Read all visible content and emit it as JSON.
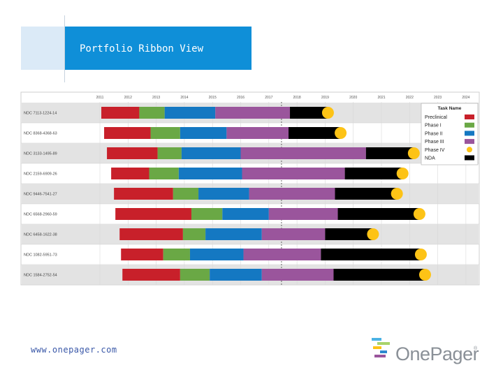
{
  "slide": {
    "title": "Portfolio Ribbon View",
    "footer_url": "www.onepager.com",
    "logo_text": "OnePager",
    "logo_reg": "®"
  },
  "colors": {
    "title_blue": "#0f8fd8",
    "Preclinical": "#c8202a",
    "Phase I": "#6aa845",
    "Phase II": "#1478c2",
    "Phase III": "#9a559c",
    "Phase IV": "#fdc316",
    "NDA": "#000000",
    "band": "#e3e3e3"
  },
  "chart_data": {
    "type": "gantt",
    "x_unit": "year",
    "xlim": [
      2011,
      2024
    ],
    "x_ticks": [
      2011,
      2012,
      2013,
      2014,
      2015,
      2016,
      2017,
      2018,
      2019,
      2020,
      2021,
      2022,
      2023,
      2024
    ],
    "x_tick_labels": [
      "2011",
      "2012",
      "2013",
      "2014",
      "2015",
      "2016",
      "2017",
      "2018",
      "2019",
      "2020",
      "2021",
      "2022",
      "2023",
      "2024"
    ],
    "today_line": 2017.45,
    "legend": {
      "title": "Task Name",
      "position": "top-right",
      "items": [
        {
          "label": "Preclinical",
          "shape": "box"
        },
        {
          "label": "Phase I",
          "shape": "box"
        },
        {
          "label": "Phase II",
          "shape": "box"
        },
        {
          "label": "Phase III",
          "shape": "box"
        },
        {
          "label": "Phase IV",
          "shape": "circle"
        },
        {
          "label": "NDA",
          "shape": "box"
        }
      ]
    },
    "rows": [
      {
        "label": "NDC 7113-1224-14",
        "phases": [
          {
            "name": "Preclinical",
            "start": 2011.05,
            "end": 2012.4
          },
          {
            "name": "Phase I",
            "start": 2012.4,
            "end": 2013.3
          },
          {
            "name": "Phase II",
            "start": 2013.3,
            "end": 2015.1
          },
          {
            "name": "Phase III",
            "start": 2015.1,
            "end": 2017.75
          },
          {
            "name": "NDA",
            "start": 2017.75,
            "end": 2019.1
          }
        ],
        "milestone": 2019.1
      },
      {
        "label": "NDC 8368-4368-63",
        "phases": [
          {
            "name": "Preclinical",
            "start": 2011.15,
            "end": 2012.8
          },
          {
            "name": "Phase I",
            "start": 2012.8,
            "end": 2013.85
          },
          {
            "name": "Phase II",
            "start": 2013.85,
            "end": 2015.5
          },
          {
            "name": "Phase III",
            "start": 2015.5,
            "end": 2017.7
          },
          {
            "name": "NDA",
            "start": 2017.7,
            "end": 2019.55
          }
        ],
        "milestone": 2019.55
      },
      {
        "label": "NDC 3133-1495-89",
        "phases": [
          {
            "name": "Preclinical",
            "start": 2011.25,
            "end": 2013.05
          },
          {
            "name": "Phase I",
            "start": 2013.05,
            "end": 2013.9
          },
          {
            "name": "Phase II",
            "start": 2013.9,
            "end": 2016.0
          },
          {
            "name": "Phase III",
            "start": 2016.0,
            "end": 2020.45
          },
          {
            "name": "NDA",
            "start": 2020.45,
            "end": 2022.15
          }
        ],
        "milestone": 2022.15
      },
      {
        "label": "NDC 2159-6909-26",
        "phases": [
          {
            "name": "Preclinical",
            "start": 2011.4,
            "end": 2012.75
          },
          {
            "name": "Phase I",
            "start": 2012.75,
            "end": 2013.8
          },
          {
            "name": "Phase II",
            "start": 2013.8,
            "end": 2016.05
          },
          {
            "name": "Phase III",
            "start": 2016.05,
            "end": 2019.7
          },
          {
            "name": "NDA",
            "start": 2019.7,
            "end": 2021.75
          }
        ],
        "milestone": 2021.75
      },
      {
        "label": "NDC 9446-7541-27",
        "phases": [
          {
            "name": "Preclinical",
            "start": 2011.5,
            "end": 2013.6
          },
          {
            "name": "Phase I",
            "start": 2013.6,
            "end": 2014.5
          },
          {
            "name": "Phase II",
            "start": 2014.5,
            "end": 2016.3
          },
          {
            "name": "Phase III",
            "start": 2016.3,
            "end": 2019.35
          },
          {
            "name": "NDA",
            "start": 2019.35,
            "end": 2021.55
          }
        ],
        "milestone": 2021.55
      },
      {
        "label": "NDC 6568-2960-59",
        "phases": [
          {
            "name": "Preclinical",
            "start": 2011.55,
            "end": 2014.25
          },
          {
            "name": "Phase I",
            "start": 2014.25,
            "end": 2015.35
          },
          {
            "name": "Phase II",
            "start": 2015.35,
            "end": 2017.0
          },
          {
            "name": "Phase III",
            "start": 2017.0,
            "end": 2019.45
          },
          {
            "name": "NDA",
            "start": 2019.45,
            "end": 2022.35
          }
        ],
        "milestone": 2022.35
      },
      {
        "label": "NDC 6458-1622-38",
        "phases": [
          {
            "name": "Preclinical",
            "start": 2011.7,
            "end": 2013.95
          },
          {
            "name": "Phase I",
            "start": 2013.95,
            "end": 2014.75
          },
          {
            "name": "Phase II",
            "start": 2014.75,
            "end": 2016.75
          },
          {
            "name": "Phase III",
            "start": 2016.75,
            "end": 2019.0
          },
          {
            "name": "NDA",
            "start": 2019.0,
            "end": 2020.7
          }
        ],
        "milestone": 2020.7
      },
      {
        "label": "NDC 1082-5951-73",
        "phases": [
          {
            "name": "Preclinical",
            "start": 2011.75,
            "end": 2013.25
          },
          {
            "name": "Phase I",
            "start": 2013.25,
            "end": 2014.2
          },
          {
            "name": "Phase II",
            "start": 2014.2,
            "end": 2016.1
          },
          {
            "name": "Phase III",
            "start": 2016.1,
            "end": 2018.85
          },
          {
            "name": "NDA",
            "start": 2018.85,
            "end": 2022.4
          }
        ],
        "milestone": 2022.4
      },
      {
        "label": "NDC 1584-2752-54",
        "phases": [
          {
            "name": "Preclinical",
            "start": 2011.8,
            "end": 2013.85
          },
          {
            "name": "Phase I",
            "start": 2013.85,
            "end": 2014.9
          },
          {
            "name": "Phase II",
            "start": 2014.9,
            "end": 2016.75
          },
          {
            "name": "Phase III",
            "start": 2016.75,
            "end": 2019.3
          },
          {
            "name": "NDA",
            "start": 2019.3,
            "end": 2022.55
          }
        ],
        "milestone": 2022.55
      }
    ]
  }
}
